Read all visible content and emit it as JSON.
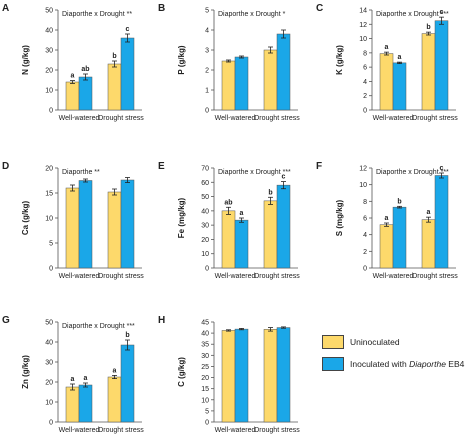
{
  "colors": {
    "uninoculated": "#fdd96b",
    "inoculated": "#1aa7e8",
    "axis": "#555555",
    "text": "#222222"
  },
  "legend": {
    "uninoculated": "Uninoculated",
    "inoculated_prefix": "Inoculated with ",
    "inoculated_italic": "Diaporthe",
    "inoculated_suffix": " EB4"
  },
  "chart_data": [
    {
      "panel": "A",
      "type": "bar",
      "annotation": "Diaporthe x Drought **",
      "ylabel": "N (g/kg)",
      "ylim": [
        0,
        50
      ],
      "yticks": [
        0,
        10,
        20,
        30,
        40,
        50
      ],
      "categories": [
        "Well-watered",
        "Drought stress"
      ],
      "series": [
        {
          "name": "Uninoculated",
          "values": [
            14,
            23
          ],
          "errors": [
            0.7,
            1.5
          ],
          "letters": [
            "a",
            "b"
          ]
        },
        {
          "name": "Inoculated with Diaporthe EB4",
          "values": [
            16.5,
            36
          ],
          "errors": [
            1.5,
            2
          ],
          "letters": [
            "ab",
            "c"
          ]
        }
      ]
    },
    {
      "panel": "B",
      "type": "bar",
      "annotation": "Diaporthe x Drought *",
      "ylabel": "P (g/kg)",
      "ylim": [
        0,
        5
      ],
      "yticks": [
        0,
        1,
        2,
        3,
        4,
        5
      ],
      "categories": [
        "Well-watered",
        "Drought stress"
      ],
      "series": [
        {
          "name": "Uninoculated",
          "values": [
            2.45,
            3.0
          ],
          "errors": [
            0.05,
            0.15
          ],
          "letters": [
            "",
            ""
          ]
        },
        {
          "name": "Inoculated with Diaporthe EB4",
          "values": [
            2.65,
            3.8
          ],
          "errors": [
            0.05,
            0.2
          ],
          "letters": [
            "",
            ""
          ]
        }
      ]
    },
    {
      "panel": "C",
      "type": "bar",
      "annotation": "Diaporthe x Drought ***",
      "ylabel": "K (g/kg)",
      "ylim": [
        0,
        14
      ],
      "yticks": [
        0,
        2,
        4,
        6,
        8,
        10,
        12,
        14
      ],
      "categories": [
        "Well-watered",
        "Drought stress"
      ],
      "series": [
        {
          "name": "Uninoculated",
          "values": [
            7.9,
            10.7
          ],
          "errors": [
            0.2,
            0.2
          ],
          "letters": [
            "a",
            "b"
          ]
        },
        {
          "name": "Inoculated with Diaporthe EB4",
          "values": [
            6.6,
            12.5
          ],
          "errors": [
            0.1,
            0.5
          ],
          "letters": [
            "a",
            "c"
          ]
        }
      ]
    },
    {
      "panel": "D",
      "type": "bar",
      "annotation": "Diaporthe **",
      "ylabel": "Ca (g/kg)",
      "ylim": [
        0,
        20
      ],
      "yticks": [
        0,
        5,
        10,
        15,
        20
      ],
      "categories": [
        "Well-watered",
        "Drought stress"
      ],
      "series": [
        {
          "name": "Uninoculated",
          "values": [
            16,
            15.2
          ],
          "errors": [
            0.6,
            0.6
          ],
          "letters": [
            "",
            ""
          ]
        },
        {
          "name": "Inoculated with Diaporthe EB4",
          "values": [
            17.5,
            17.6
          ],
          "errors": [
            0.3,
            0.5
          ],
          "letters": [
            "",
            ""
          ]
        }
      ]
    },
    {
      "panel": "E",
      "type": "bar",
      "annotation": "Diaporthe x Drought ***",
      "ylabel": "Fe (mg/kg)",
      "ylim": [
        0,
        70
      ],
      "yticks": [
        0,
        10,
        20,
        30,
        40,
        50,
        60,
        70
      ],
      "categories": [
        "Well-watered",
        "Drought stress"
      ],
      "series": [
        {
          "name": "Uninoculated",
          "values": [
            40,
            47
          ],
          "errors": [
            2.5,
            2.5
          ],
          "letters": [
            "ab",
            "b"
          ]
        },
        {
          "name": "Inoculated with Diaporthe EB4",
          "values": [
            33.5,
            58
          ],
          "errors": [
            1.5,
            2.5
          ],
          "letters": [
            "a",
            "c"
          ]
        }
      ]
    },
    {
      "panel": "F",
      "type": "bar",
      "annotation": "Diaporthe x Drought ***",
      "ylabel": "S (mg/kg)",
      "ylim": [
        0,
        12
      ],
      "yticks": [
        0,
        2,
        4,
        6,
        8,
        10,
        12
      ],
      "categories": [
        "Well-watered",
        "Drought stress"
      ],
      "series": [
        {
          "name": "Uninoculated",
          "values": [
            5.2,
            5.8
          ],
          "errors": [
            0.2,
            0.3
          ],
          "letters": [
            "a",
            "a"
          ]
        },
        {
          "name": "Inoculated with Diaporthe EB4",
          "values": [
            7.3,
            11.1
          ],
          "errors": [
            0.1,
            0.3
          ],
          "letters": [
            "b",
            "c"
          ]
        }
      ]
    },
    {
      "panel": "G",
      "type": "bar",
      "annotation": "Diaporthe x Drought ***",
      "ylabel": "Zn (g/kg)",
      "ylim": [
        0,
        50
      ],
      "yticks": [
        0,
        10,
        20,
        30,
        40,
        50
      ],
      "categories": [
        "Well-watered",
        "Drought stress"
      ],
      "series": [
        {
          "name": "Uninoculated",
          "values": [
            17.5,
            22.5
          ],
          "errors": [
            1.5,
            0.8
          ],
          "letters": [
            "a",
            "a"
          ]
        },
        {
          "name": "Inoculated with Diaporthe EB4",
          "values": [
            18.5,
            38.5
          ],
          "errors": [
            1,
            2.5
          ],
          "letters": [
            "a",
            "b"
          ]
        }
      ]
    },
    {
      "panel": "H",
      "type": "bar",
      "annotation": "",
      "ylabel": "C (g/kg)",
      "ylim": [
        0,
        45
      ],
      "yticks": [
        0,
        5,
        10,
        15,
        20,
        25,
        30,
        35,
        40,
        45
      ],
      "categories": [
        "Well-watered",
        "Drought stress"
      ],
      "series": [
        {
          "name": "Uninoculated",
          "values": [
            41.2,
            41.7
          ],
          "errors": [
            0.3,
            0.8
          ],
          "letters": [
            "",
            ""
          ]
        },
        {
          "name": "Inoculated with Diaporthe EB4",
          "values": [
            41.8,
            42.5
          ],
          "errors": [
            0.3,
            0.3
          ],
          "letters": [
            "",
            ""
          ]
        }
      ]
    }
  ]
}
